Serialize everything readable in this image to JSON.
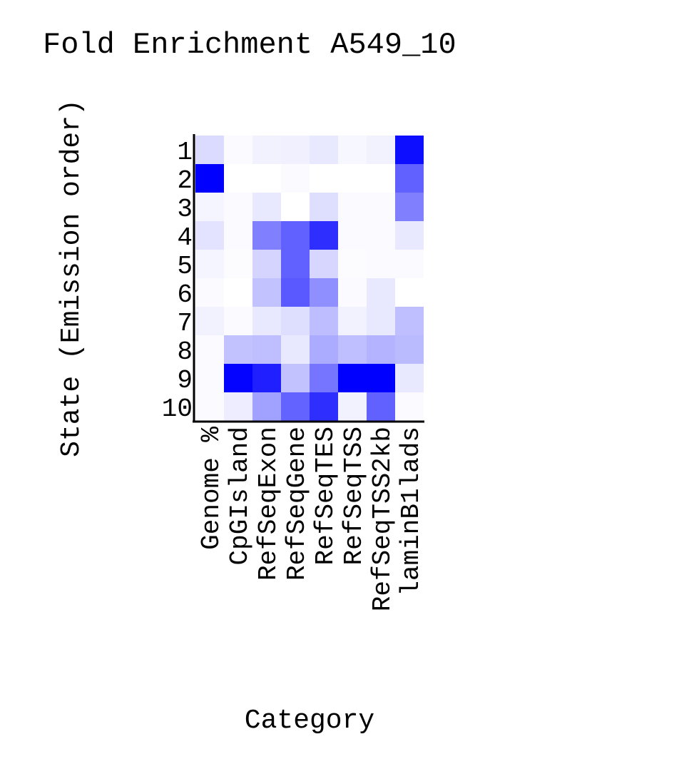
{
  "chart_data": {
    "type": "heatmap",
    "title": "Fold Enrichment A549_10",
    "xlabel": "Category",
    "ylabel": "State (Emission order)",
    "rows": [
      "1",
      "2",
      "3",
      "4",
      "5",
      "6",
      "7",
      "8",
      "9",
      "10"
    ],
    "columns": [
      "Genome %",
      "CpGIsland",
      "RefSeqExon",
      "RefSeqGene",
      "RefSeqTES",
      "RefSeqTSS",
      "RefSeqTSS2kb",
      "laminB1lads"
    ],
    "values": [
      [
        0.14,
        0.02,
        0.05,
        0.06,
        0.09,
        0.03,
        0.05,
        0.95
      ],
      [
        1.0,
        0.0,
        0.0,
        0.02,
        0.0,
        0.0,
        0.0,
        0.62
      ],
      [
        0.04,
        0.02,
        0.09,
        0.0,
        0.13,
        0.02,
        0.02,
        0.5
      ],
      [
        0.11,
        0.02,
        0.5,
        0.62,
        0.82,
        0.02,
        0.02,
        0.09
      ],
      [
        0.04,
        0.01,
        0.17,
        0.62,
        0.16,
        0.01,
        0.02,
        0.02
      ],
      [
        0.02,
        0.0,
        0.24,
        0.65,
        0.44,
        0.02,
        0.09,
        0.0
      ],
      [
        0.05,
        0.02,
        0.09,
        0.13,
        0.26,
        0.05,
        0.09,
        0.25
      ],
      [
        0.02,
        0.24,
        0.25,
        0.09,
        0.33,
        0.25,
        0.3,
        0.27
      ],
      [
        0.02,
        0.99,
        0.88,
        0.24,
        0.54,
        1.0,
        1.0,
        0.09
      ],
      [
        0.02,
        0.07,
        0.37,
        0.61,
        0.82,
        0.05,
        0.62,
        0.02
      ]
    ],
    "color_scale": {
      "low": "#ffffff",
      "high": "#0000ff"
    },
    "grid": false,
    "legend": "none"
  }
}
